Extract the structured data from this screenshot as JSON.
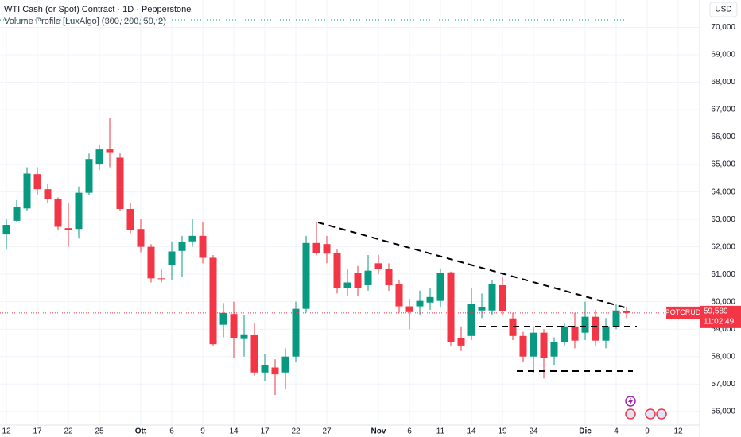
{
  "chart_data": {
    "type": "candlestick",
    "title": "WTI Cash (or Spot) Contract · 1D · Pepperstone",
    "subtitle": "Volume Profile [LuxAlgo] (300, 200, 50, 2)",
    "currency": "USD",
    "symbol": "SPOTCRUDE",
    "last_price": {
      "value": 59.589,
      "label": "59,589"
    },
    "countdown": "11:02:49",
    "up_color": "#089981",
    "down_color": "#f23645",
    "categories": [
      "12",
      null,
      null,
      "17",
      null,
      null,
      "22",
      null,
      null,
      "25",
      null,
      null,
      null,
      "Ott",
      null,
      null,
      "6",
      null,
      null,
      "9",
      null,
      null,
      "14",
      null,
      null,
      "17",
      null,
      null,
      "22",
      null,
      null,
      "27",
      null,
      null,
      null,
      null,
      "Nov",
      null,
      null,
      "6",
      null,
      null,
      "11",
      null,
      null,
      "14",
      null,
      null,
      "19",
      null,
      null,
      "24",
      null,
      null,
      null,
      null,
      "Dic",
      null,
      null,
      "4",
      null,
      null,
      "9",
      null,
      null,
      "12"
    ],
    "open": [
      62.45,
      62.95,
      63.4,
      64.65,
      64.1,
      63.75,
      62.68,
      62.65,
      63.97,
      65.0,
      65.55,
      65.25,
      63.38,
      62.65,
      62.0,
      60.85,
      61.33,
      61.85,
      62.2,
      62.4,
      61.6,
      59.16,
      59.55,
      58.64,
      58.8,
      57.42,
      57.6,
      57.42,
      58.0,
      59.74,
      62.14,
      62.1,
      61.77,
      60.5,
      61.04,
      60.6,
      61.4,
      61.2,
      60.63,
      59.83,
      59.83,
      59.97,
      60.03,
      61.07,
      58.67,
      58.75,
      59.68,
      59.68,
      60.6,
      59.39,
      58.75,
      58.0,
      58.87,
      58.0,
      58.52,
      59.1,
      58.87,
      59.45,
      58.58,
      59.1,
      59.65,
      null,
      null,
      null,
      null,
      null
    ],
    "high": [
      63.0,
      63.7,
      64.9,
      64.9,
      64.3,
      63.8,
      63.6,
      64.2,
      65.4,
      65.7,
      66.7,
      65.4,
      63.6,
      63.0,
      62.1,
      61.2,
      62.2,
      62.4,
      63.0,
      62.9,
      61.7,
      59.95,
      60.0,
      59.5,
      59.2,
      58.1,
      57.9,
      58.3,
      60.0,
      62.4,
      62.9,
      62.4,
      61.9,
      61.2,
      61.3,
      61.7,
      61.7,
      61.4,
      60.8,
      60.1,
      60.4,
      60.5,
      61.2,
      61.1,
      59.1,
      60.5,
      60.3,
      60.8,
      60.9,
      59.6,
      58.9,
      59.1,
      59.0,
      58.7,
      59.2,
      59.6,
      60.0,
      59.7,
      59.4,
      59.9,
      59.8,
      null,
      null,
      null,
      null,
      null
    ],
    "low": [
      61.9,
      62.9,
      63.3,
      63.9,
      63.6,
      62.6,
      62.0,
      62.3,
      63.9,
      64.8,
      64.9,
      63.3,
      62.5,
      61.8,
      60.7,
      60.7,
      60.8,
      60.9,
      62.0,
      61.4,
      58.4,
      58.7,
      57.95,
      58.0,
      57.3,
      57.1,
      56.6,
      56.8,
      57.8,
      59.6,
      61.7,
      61.4,
      60.3,
      60.2,
      60.2,
      60.4,
      61.0,
      60.4,
      59.6,
      59.0,
      59.5,
      59.7,
      59.8,
      58.4,
      58.2,
      58.6,
      59.4,
      59.5,
      59.5,
      58.6,
      57.8,
      57.4,
      57.2,
      57.7,
      58.4,
      58.3,
      58.6,
      58.4,
      58.3,
      59.0,
      59.4,
      null,
      null,
      null,
      null,
      null
    ],
    "close": [
      62.8,
      63.45,
      64.67,
      64.1,
      63.75,
      62.73,
      62.62,
      63.97,
      65.2,
      65.55,
      65.45,
      63.38,
      62.6,
      62.0,
      60.85,
      60.82,
      61.83,
      62.17,
      62.4,
      61.6,
      58.45,
      59.59,
      58.67,
      58.81,
      57.42,
      57.68,
      57.35,
      58.0,
      59.74,
      62.14,
      61.77,
      61.75,
      60.5,
      60.7,
      60.5,
      61.13,
      61.2,
      60.6,
      59.83,
      59.62,
      60.03,
      60.17,
      61.04,
      58.52,
      58.4,
      59.91,
      59.8,
      60.64,
      59.65,
      58.75,
      58.0,
      58.87,
      57.94,
      58.52,
      59.1,
      58.58,
      59.45,
      58.58,
      59.1,
      59.68,
      59.589,
      null,
      null,
      null,
      null,
      null
    ],
    "ylim": [
      55.5,
      71.0
    ],
    "yticks": [
      {
        "value": 56,
        "label": "56,000"
      },
      {
        "value": 57,
        "label": "57,000"
      },
      {
        "value": 58,
        "label": "58,000"
      },
      {
        "value": 59,
        "label": "59,000"
      },
      {
        "value": 60,
        "label": "60,000"
      },
      {
        "value": 61,
        "label": "61,000"
      },
      {
        "value": 62,
        "label": "62,000"
      },
      {
        "value": 63,
        "label": "63,000"
      },
      {
        "value": 64,
        "label": "64,000"
      },
      {
        "value": 65,
        "label": "65,000"
      },
      {
        "value": 66,
        "label": "66,000"
      },
      {
        "value": 67,
        "label": "67,000"
      },
      {
        "value": 68,
        "label": "68,000"
      },
      {
        "value": 69,
        "label": "69,000"
      },
      {
        "value": 70,
        "label": "70,000"
      }
    ],
    "grid": true
  }
}
